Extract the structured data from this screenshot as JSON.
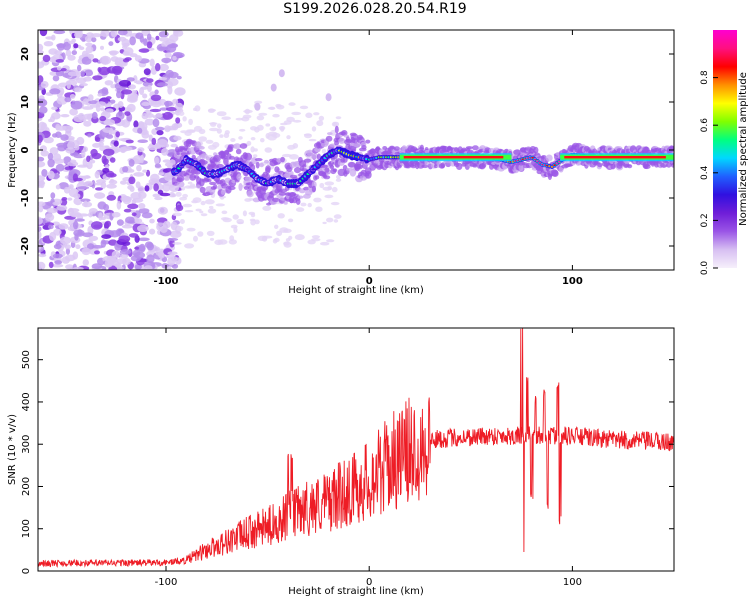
{
  "title": "S199.2026.028.20.54.R19",
  "chart_data": [
    {
      "type": "heatmap",
      "xlabel": "Height of straight line (km)",
      "ylabel": "Frequency (Hz)",
      "xlim": [
        -163,
        150
      ],
      "ylim": [
        -25,
        25
      ],
      "xticks": [
        -100,
        0,
        100
      ],
      "yticks": [
        -20,
        -10,
        0,
        10,
        20
      ],
      "colorbar": {
        "label": "Normalized spectral amplitude",
        "range": [
          0,
          1
        ],
        "ticks": [
          "0.0",
          "0.2",
          "0.4",
          "0.6",
          "0.8"
        ],
        "tick_values": [
          0,
          0.2,
          0.4,
          0.6,
          0.8
        ],
        "colors": [
          "#f6f0fb",
          "#d7bff2",
          "#9a55e6",
          "#6f1ed8",
          "#3010e0",
          "#2060ff",
          "#00d8ff",
          "#00ff80",
          "#80ff00",
          "#ffff00",
          "#ff9000",
          "#ff0000",
          "#ff1080",
          "#ff00d0"
        ]
      },
      "ridge": {
        "description": "dominant frequency trace",
        "x": [
          -95,
          -90,
          -85,
          -80,
          -75,
          -70,
          -65,
          -60,
          -55,
          -50,
          -45,
          -40,
          -35,
          -30,
          -25,
          -20,
          -15,
          -10,
          -5,
          0,
          5,
          10,
          20,
          40,
          60,
          70,
          75,
          80,
          85,
          90,
          95,
          100,
          110,
          120,
          130,
          140,
          150
        ],
        "y": [
          -4.5,
          -2,
          -3,
          -5,
          -5,
          -4,
          -3,
          -4,
          -6,
          -7,
          -6,
          -7,
          -7,
          -5,
          -3,
          -1,
          0,
          -1,
          -1.5,
          -2,
          -1.5,
          -1.5,
          -1.5,
          -1.5,
          -1.5,
          -2.5,
          -2,
          -1.5,
          -3,
          -3.5,
          -2,
          -1,
          -1.5,
          -1.5,
          -1.5,
          -1.5,
          -1.5
        ]
      }
    },
    {
      "type": "line",
      "xlabel": "Height of straight line (km)",
      "ylabel": "SNR (10 * v/v)",
      "xlim": [
        -163,
        150
      ],
      "ylim": [
        0,
        575
      ],
      "xticks": [
        -100,
        0,
        100
      ],
      "yticks": [
        0,
        100,
        200,
        300,
        400,
        500
      ],
      "color": "#ee1c25",
      "envelope": {
        "x": [
          -163,
          -100,
          -90,
          -80,
          -70,
          -60,
          -50,
          -40,
          -30,
          -20,
          -10,
          0,
          10,
          20,
          30,
          40,
          60,
          75,
          100,
          120,
          150
        ],
        "y": [
          18,
          20,
          25,
          50,
          70,
          90,
          105,
          130,
          150,
          165,
          190,
          215,
          255,
          285,
          310,
          315,
          320,
          320,
          320,
          310,
          305
        ]
      },
      "spikes": [
        {
          "x": -40,
          "value": 280
        },
        {
          "x": -38,
          "value": 270
        },
        {
          "x": 75,
          "value": 570
        },
        {
          "x": 76,
          "value": 45
        },
        {
          "x": 78,
          "value": 450
        },
        {
          "x": 80,
          "value": 180
        },
        {
          "x": 82,
          "value": 405
        },
        {
          "x": 86,
          "value": 420
        },
        {
          "x": 88,
          "value": 150
        },
        {
          "x": 93,
          "value": 440
        },
        {
          "x": 94,
          "value": 120
        }
      ]
    }
  ]
}
